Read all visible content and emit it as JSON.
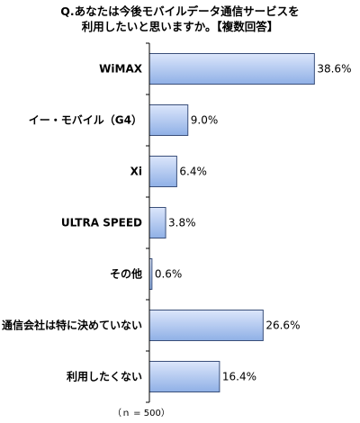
{
  "chart_data": {
    "type": "bar",
    "orientation": "horizontal",
    "title_lines": [
      "Q.あなたは今後モバイルデータ通信サービスを",
      "利用したいと思いますか。【複数回答】"
    ],
    "categories": [
      "WiMAX",
      "イー・モバイル（G4）",
      "Xi",
      "ULTRA SPEED",
      "その他",
      "通信会社は特に決めていない",
      "利用したくない"
    ],
    "values": [
      38.6,
      9.0,
      6.4,
      3.8,
      0.6,
      26.6,
      16.4
    ],
    "value_labels": [
      "38.6%",
      "9.0%",
      "6.4%",
      "3.8%",
      "0.6%",
      "26.6%",
      "16.4%"
    ],
    "unit": "%",
    "xlim": [
      0,
      40
    ],
    "grid": false,
    "legend": "none",
    "note": "（ｎ = 500）",
    "colors": {
      "bar_fill_top": "#dce6fb",
      "bar_fill_bottom": "#8fb0e6",
      "bar_stroke": "#3a4f7a",
      "axis": "#000000"
    }
  }
}
